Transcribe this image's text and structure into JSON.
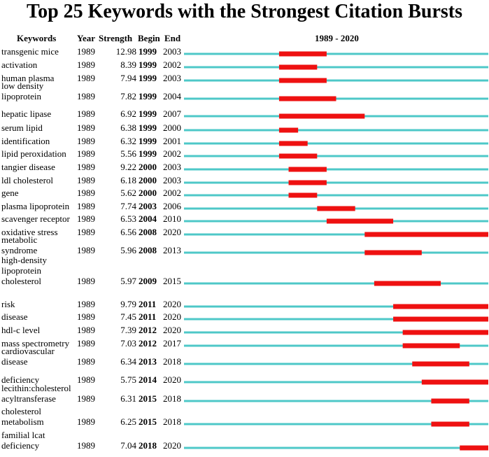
{
  "chart_data": {
    "type": "bar",
    "title": "Top 25 Keywords with the Strongest Citation Bursts",
    "headers": {
      "keywords": "Keywords",
      "year": "Year",
      "strength": "Strength",
      "begin": "Begin",
      "end": "End",
      "range": "1989 - 2020"
    },
    "range": [
      1989,
      2020
    ],
    "colors": {
      "baseline": "#4ec8c8",
      "burst": "#ee1111"
    },
    "rows": [
      {
        "keyword": "transgenic mice",
        "year": "1989",
        "strength": "12.98",
        "begin": "1999",
        "end": "2003"
      },
      {
        "keyword": "activation",
        "year": "1989",
        "strength": "8.39",
        "begin": "1999",
        "end": "2002"
      },
      {
        "keyword": "human plasma",
        "year": "1989",
        "strength": "7.94",
        "begin": "1999",
        "end": "2003"
      },
      {
        "keyword": "low density lipoprotein",
        "year": "1989",
        "strength": "7.82",
        "begin": "1999",
        "end": "2004"
      },
      {
        "keyword": "hepatic lipase",
        "year": "1989",
        "strength": "6.92",
        "begin": "1999",
        "end": "2007"
      },
      {
        "keyword": "serum lipid",
        "year": "1989",
        "strength": "6.38",
        "begin": "1999",
        "end": "2000"
      },
      {
        "keyword": "identification",
        "year": "1989",
        "strength": "6.32",
        "begin": "1999",
        "end": "2001"
      },
      {
        "keyword": "lipid peroxidation",
        "year": "1989",
        "strength": "5.56",
        "begin": "1999",
        "end": "2002"
      },
      {
        "keyword": "tangier disease",
        "year": "1989",
        "strength": "9.22",
        "begin": "2000",
        "end": "2003"
      },
      {
        "keyword": "ldl cholesterol",
        "year": "1989",
        "strength": "6.18",
        "begin": "2000",
        "end": "2003"
      },
      {
        "keyword": "gene",
        "year": "1989",
        "strength": "5.62",
        "begin": "2000",
        "end": "2002"
      },
      {
        "keyword": "plasma lipoprotein",
        "year": "1989",
        "strength": "7.74",
        "begin": "2003",
        "end": "2006"
      },
      {
        "keyword": "scavenger receptor",
        "year": "1989",
        "strength": "6.53",
        "begin": "2004",
        "end": "2010"
      },
      {
        "keyword": "oxidative stress",
        "year": "1989",
        "strength": "6.56",
        "begin": "2008",
        "end": "2020"
      },
      {
        "keyword": "metabolic syndrome",
        "year": "1989",
        "strength": "5.96",
        "begin": "2008",
        "end": "2013"
      },
      {
        "keyword": "high-density lipoprotein cholesterol",
        "year": "1989",
        "strength": "5.97",
        "begin": "2009",
        "end": "2015"
      },
      {
        "keyword": "risk",
        "year": "1989",
        "strength": "9.79",
        "begin": "2011",
        "end": "2020"
      },
      {
        "keyword": "disease",
        "year": "1989",
        "strength": "7.45",
        "begin": "2011",
        "end": "2020"
      },
      {
        "keyword": "hdl-c level",
        "year": "1989",
        "strength": "7.39",
        "begin": "2012",
        "end": "2020"
      },
      {
        "keyword": "mass spectrometry",
        "year": "1989",
        "strength": "7.03",
        "begin": "2012",
        "end": "2017"
      },
      {
        "keyword": "cardiovascular disease",
        "year": "1989",
        "strength": "6.34",
        "begin": "2013",
        "end": "2018"
      },
      {
        "keyword": "deficiency",
        "year": "1989",
        "strength": "5.75",
        "begin": "2014",
        "end": "2020"
      },
      {
        "keyword": "lecithin:cholesterol acyltransferase",
        "year": "1989",
        "strength": "6.31",
        "begin": "2015",
        "end": "2018"
      },
      {
        "keyword": "cholesterol metabolism",
        "year": "1989",
        "strength": "6.25",
        "begin": "2015",
        "end": "2018"
      },
      {
        "keyword": "familial lcat deficiency",
        "year": "1989",
        "strength": "7.04",
        "begin": "2018",
        "end": "2020"
      }
    ]
  }
}
